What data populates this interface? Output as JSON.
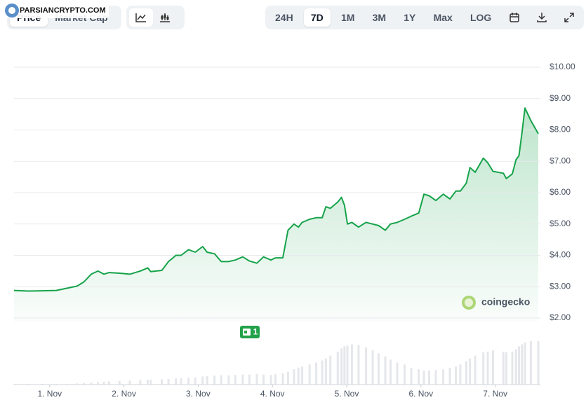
{
  "watermark": "PARSIANCRYPTO.COM",
  "toolbar": {
    "left": [
      "Price",
      "Market Cap"
    ],
    "right": [
      "24H",
      "7D",
      "1M",
      "3M",
      "1Y",
      "Max",
      "LOG"
    ],
    "active": "7D"
  },
  "logo": "coingecko",
  "badge": "1",
  "chart_data": {
    "type": "line",
    "color": "#16a34a",
    "x": [
      0.52,
      0.71,
      0.9,
      1.09,
      1.23,
      1.37,
      1.46,
      1.56,
      1.65,
      1.73,
      1.8,
      1.94,
      2.08,
      2.22,
      2.32,
      2.36,
      2.51,
      2.6,
      2.7,
      2.77,
      2.87,
      2.96,
      3.06,
      3.12,
      3.22,
      3.31,
      3.41,
      3.5,
      3.6,
      3.69,
      3.79,
      3.88,
      3.98,
      4.04,
      4.14,
      4.21,
      4.29,
      4.35,
      4.4,
      4.5,
      4.59,
      4.67,
      4.72,
      4.78,
      4.88,
      4.93,
      4.97,
      5.01,
      5.07,
      5.16,
      5.26,
      5.35,
      5.43,
      5.52,
      5.59,
      5.68,
      5.78,
      5.87,
      5.97,
      6.04,
      6.11,
      6.2,
      6.3,
      6.39,
      6.47,
      6.53,
      6.61,
      6.66,
      6.73,
      6.84,
      6.9,
      6.97,
      7.11,
      7.15,
      7.23,
      7.28,
      7.32,
      7.36,
      7.4,
      7.48,
      7.58
    ],
    "values": [
      2.88,
      2.86,
      2.87,
      2.88,
      2.95,
      3.02,
      3.15,
      3.4,
      3.5,
      3.4,
      3.45,
      3.43,
      3.4,
      3.5,
      3.6,
      3.48,
      3.52,
      3.8,
      4.0,
      4.0,
      4.18,
      4.1,
      4.28,
      4.1,
      4.05,
      3.8,
      3.8,
      3.85,
      3.95,
      3.82,
      3.75,
      3.95,
      3.85,
      3.92,
      3.92,
      4.8,
      5.0,
      4.9,
      5.05,
      5.15,
      5.2,
      5.2,
      5.55,
      5.5,
      5.7,
      5.85,
      5.6,
      5.0,
      5.05,
      4.9,
      5.05,
      5.0,
      4.95,
      4.8,
      5.0,
      5.05,
      5.15,
      5.25,
      5.35,
      5.95,
      5.9,
      5.75,
      5.95,
      5.8,
      6.05,
      6.05,
      6.3,
      6.8,
      6.65,
      7.1,
      6.95,
      6.68,
      6.62,
      6.45,
      6.6,
      7.05,
      7.18,
      7.9,
      8.7,
      8.3,
      7.88
    ],
    "volume": {
      "color": "#e5e7eb",
      "values": [
        2,
        2,
        2,
        2,
        2,
        3,
        4,
        5,
        6,
        7,
        8,
        9,
        10,
        11,
        12,
        12,
        13,
        14,
        15,
        16,
        17,
        18,
        20,
        21,
        22,
        23,
        23,
        24,
        25,
        25,
        26,
        25,
        24,
        26,
        28,
        32,
        38,
        42,
        45,
        50,
        55,
        60,
        65,
        72,
        82,
        90,
        95,
        97,
        100,
        98,
        92,
        85,
        78,
        70,
        62,
        55,
        50,
        42,
        38,
        35,
        35,
        36,
        38,
        42,
        45,
        50,
        58,
        65,
        72,
        80,
        82,
        85,
        82,
        80,
        82,
        88,
        95,
        100,
        105,
        108,
        108
      ]
    },
    "xlim": [
      0.52,
      7.58
    ],
    "xticks": [
      {
        "value": 1,
        "label": "1. Nov"
      },
      {
        "value": 2,
        "label": "2. Nov"
      },
      {
        "value": 3,
        "label": "3. Nov"
      },
      {
        "value": 4,
        "label": "4. Nov"
      },
      {
        "value": 5,
        "label": "5. Nov"
      },
      {
        "value": 6,
        "label": "6. Nov"
      },
      {
        "value": 7,
        "label": "7. Nov"
      }
    ],
    "ylim": [
      2,
      10
    ],
    "yticks": [
      {
        "value": 2,
        "label": "$2.00"
      },
      {
        "value": 3,
        "label": "$3.00"
      },
      {
        "value": 4,
        "label": "$4.00"
      },
      {
        "value": 5,
        "label": "$5.00"
      },
      {
        "value": 6,
        "label": "$6.00"
      },
      {
        "value": 7,
        "label": "$7.00"
      },
      {
        "value": 8,
        "label": "$8.00"
      },
      {
        "value": 9,
        "label": "$9.00"
      },
      {
        "value": 10,
        "label": "$10.00"
      }
    ],
    "grid": true
  }
}
